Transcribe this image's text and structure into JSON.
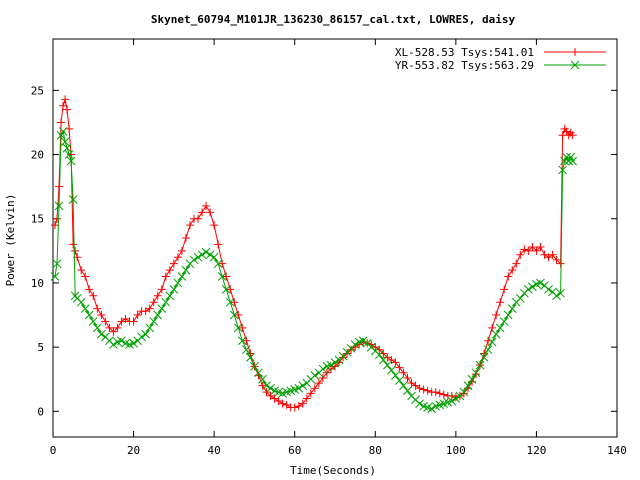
{
  "chart_data": {
    "type": "line",
    "title": "Skynet_60794_M101JR_136230_86157_cal.txt, LOWRES, daisy",
    "xlabel": "Time(Seconds)",
    "ylabel": "Power (Kelvin)",
    "xlim": [
      0,
      140
    ],
    "ylim": [
      -2,
      29
    ],
    "xticks": [
      0,
      20,
      40,
      60,
      80,
      100,
      120,
      140
    ],
    "yticks": [
      0,
      5,
      10,
      15,
      20,
      25
    ],
    "grid": false,
    "legend_position": "top-right",
    "series": [
      {
        "name": "XL-528.53 Tsys:541.01",
        "color": "#ff0000",
        "marker": "plus",
        "x": [
          0.5,
          1.0,
          1.5,
          2.0,
          2.5,
          3.0,
          3.5,
          4.0,
          4.5,
          5.0,
          5.5,
          6.0,
          7.0,
          8.0,
          9.0,
          10.0,
          11.0,
          12.0,
          13.0,
          14.0,
          15.0,
          16.0,
          17.0,
          18.0,
          19.0,
          20.0,
          21.0,
          22.0,
          23.0,
          24.0,
          25.0,
          26.0,
          27.0,
          28.0,
          29.0,
          30.0,
          31.0,
          32.0,
          33.0,
          34.0,
          35.0,
          36.0,
          37.0,
          38.0,
          39.0,
          40.0,
          41.0,
          42.0,
          43.0,
          44.0,
          45.0,
          46.0,
          47.0,
          48.0,
          49.0,
          50.0,
          51.0,
          52.0,
          53.0,
          54.0,
          55.0,
          56.0,
          57.0,
          58.0,
          59.0,
          60.0,
          61.0,
          62.0,
          63.0,
          64.0,
          65.0,
          66.0,
          67.0,
          68.0,
          69.0,
          70.0,
          71.0,
          72.0,
          73.0,
          74.0,
          75.0,
          76.0,
          77.0,
          78.0,
          79.0,
          80.0,
          81.0,
          82.0,
          83.0,
          84.0,
          85.0,
          86.0,
          87.0,
          88.0,
          89.0,
          90.0,
          91.0,
          92.0,
          93.0,
          94.0,
          95.0,
          96.0,
          97.0,
          98.0,
          99.0,
          100.0,
          101.0,
          102.0,
          103.0,
          104.0,
          105.0,
          106.0,
          107.0,
          108.0,
          109.0,
          110.0,
          111.0,
          112.0,
          113.0,
          114.0,
          115.0,
          116.0,
          117.0,
          118.0,
          119.0,
          120.0,
          121.0,
          122.0,
          123.0,
          124.0,
          125.0,
          126.0,
          126.5,
          127.0,
          127.5,
          128.0,
          128.5,
          129.0
        ],
        "y": [
          14.5,
          15.0,
          17.5,
          22.5,
          23.8,
          24.3,
          23.5,
          22.0,
          20.0,
          13.0,
          12.5,
          12.0,
          11.0,
          10.5,
          9.5,
          9.0,
          8.0,
          7.5,
          7.0,
          6.5,
          6.2,
          6.5,
          7.0,
          7.2,
          7.0,
          7.0,
          7.5,
          7.8,
          7.8,
          8.0,
          8.5,
          9.0,
          9.5,
          10.5,
          11.0,
          11.5,
          12.0,
          12.5,
          13.5,
          14.5,
          15.0,
          15.0,
          15.5,
          16.0,
          15.5,
          14.5,
          13.0,
          11.5,
          10.5,
          9.5,
          8.5,
          7.5,
          6.5,
          5.5,
          4.5,
          3.5,
          2.8,
          2.0,
          1.5,
          1.2,
          1.0,
          0.8,
          0.6,
          0.5,
          0.3,
          0.3,
          0.4,
          0.6,
          1.0,
          1.4,
          1.8,
          2.2,
          2.6,
          3.0,
          3.3,
          3.5,
          3.8,
          4.2,
          4.5,
          4.8,
          5.0,
          5.2,
          5.4,
          5.3,
          5.2,
          5.0,
          4.8,
          4.5,
          4.2,
          4.0,
          3.8,
          3.4,
          3.0,
          2.6,
          2.2,
          2.0,
          1.8,
          1.7,
          1.6,
          1.5,
          1.5,
          1.4,
          1.3,
          1.2,
          1.2,
          1.1,
          1.2,
          1.4,
          1.8,
          2.3,
          2.9,
          3.6,
          4.5,
          5.5,
          6.5,
          7.5,
          8.5,
          9.5,
          10.5,
          11.0,
          11.5,
          12.2,
          12.6,
          12.5,
          12.8,
          12.5,
          12.8,
          12.2,
          12.0,
          12.2,
          11.8,
          11.5,
          21.5,
          22.0,
          21.8,
          21.5,
          21.7,
          21.5
        ]
      },
      {
        "name": "YR-553.82 Tsys:563.29",
        "color": "#00a000",
        "marker": "cross",
        "x": [
          0.5,
          1.0,
          1.5,
          2.0,
          2.5,
          3.0,
          3.5,
          4.0,
          4.5,
          5.0,
          5.5,
          6.0,
          7.0,
          8.0,
          9.0,
          10.0,
          11.0,
          12.0,
          13.0,
          14.0,
          15.0,
          16.0,
          17.0,
          18.0,
          19.0,
          20.0,
          21.0,
          22.0,
          23.0,
          24.0,
          25.0,
          26.0,
          27.0,
          28.0,
          29.0,
          30.0,
          31.0,
          32.0,
          33.0,
          34.0,
          35.0,
          36.0,
          37.0,
          38.0,
          39.0,
          40.0,
          41.0,
          42.0,
          43.0,
          44.0,
          45.0,
          46.0,
          47.0,
          48.0,
          49.0,
          50.0,
          51.0,
          52.0,
          53.0,
          54.0,
          55.0,
          56.0,
          57.0,
          58.0,
          59.0,
          60.0,
          61.0,
          62.0,
          63.0,
          64.0,
          65.0,
          66.0,
          67.0,
          68.0,
          69.0,
          70.0,
          71.0,
          72.0,
          73.0,
          74.0,
          75.0,
          76.0,
          77.0,
          78.0,
          79.0,
          80.0,
          81.0,
          82.0,
          83.0,
          84.0,
          85.0,
          86.0,
          87.0,
          88.0,
          89.0,
          90.0,
          91.0,
          92.0,
          93.0,
          94.0,
          95.0,
          96.0,
          97.0,
          98.0,
          99.0,
          100.0,
          101.0,
          102.0,
          103.0,
          104.0,
          105.0,
          106.0,
          107.0,
          108.0,
          109.0,
          110.0,
          111.0,
          112.0,
          113.0,
          114.0,
          115.0,
          116.0,
          117.0,
          118.0,
          119.0,
          120.0,
          121.0,
          122.0,
          123.0,
          124.0,
          125.0,
          126.0,
          126.5,
          127.0,
          127.5,
          128.0,
          128.5,
          129.0
        ],
        "y": [
          10.5,
          11.5,
          16.0,
          21.5,
          21.8,
          21.0,
          20.5,
          20.0,
          19.5,
          16.5,
          9.0,
          8.8,
          8.5,
          8.0,
          7.5,
          7.0,
          6.5,
          6.0,
          5.8,
          5.5,
          5.2,
          5.4,
          5.5,
          5.3,
          5.2,
          5.3,
          5.5,
          5.8,
          6.0,
          6.5,
          7.0,
          7.5,
          8.0,
          8.5,
          9.0,
          9.5,
          10.0,
          10.5,
          11.0,
          11.5,
          11.8,
          12.0,
          12.2,
          12.4,
          12.2,
          12.0,
          11.5,
          10.5,
          9.5,
          8.5,
          7.5,
          6.5,
          5.5,
          4.8,
          4.2,
          3.5,
          3.0,
          2.5,
          2.0,
          1.8,
          1.6,
          1.5,
          1.4,
          1.5,
          1.6,
          1.7,
          1.8,
          2.0,
          2.2,
          2.5,
          2.8,
          3.0,
          3.3,
          3.5,
          3.6,
          3.8,
          4.0,
          4.3,
          4.6,
          4.9,
          5.2,
          5.4,
          5.5,
          5.3,
          5.0,
          4.7,
          4.4,
          4.0,
          3.6,
          3.2,
          2.8,
          2.4,
          2.0,
          1.6,
          1.2,
          0.9,
          0.6,
          0.4,
          0.3,
          0.2,
          0.4,
          0.5,
          0.6,
          0.7,
          0.8,
          1.0,
          1.2,
          1.5,
          2.0,
          2.5,
          3.0,
          3.6,
          4.2,
          4.8,
          5.4,
          6.0,
          6.5,
          7.0,
          7.5,
          8.0,
          8.5,
          8.8,
          9.2,
          9.5,
          9.7,
          9.9,
          10.0,
          9.8,
          9.5,
          9.3,
          9.0,
          9.2,
          18.8,
          19.5,
          19.8,
          19.5,
          19.8,
          19.5
        ]
      }
    ]
  }
}
